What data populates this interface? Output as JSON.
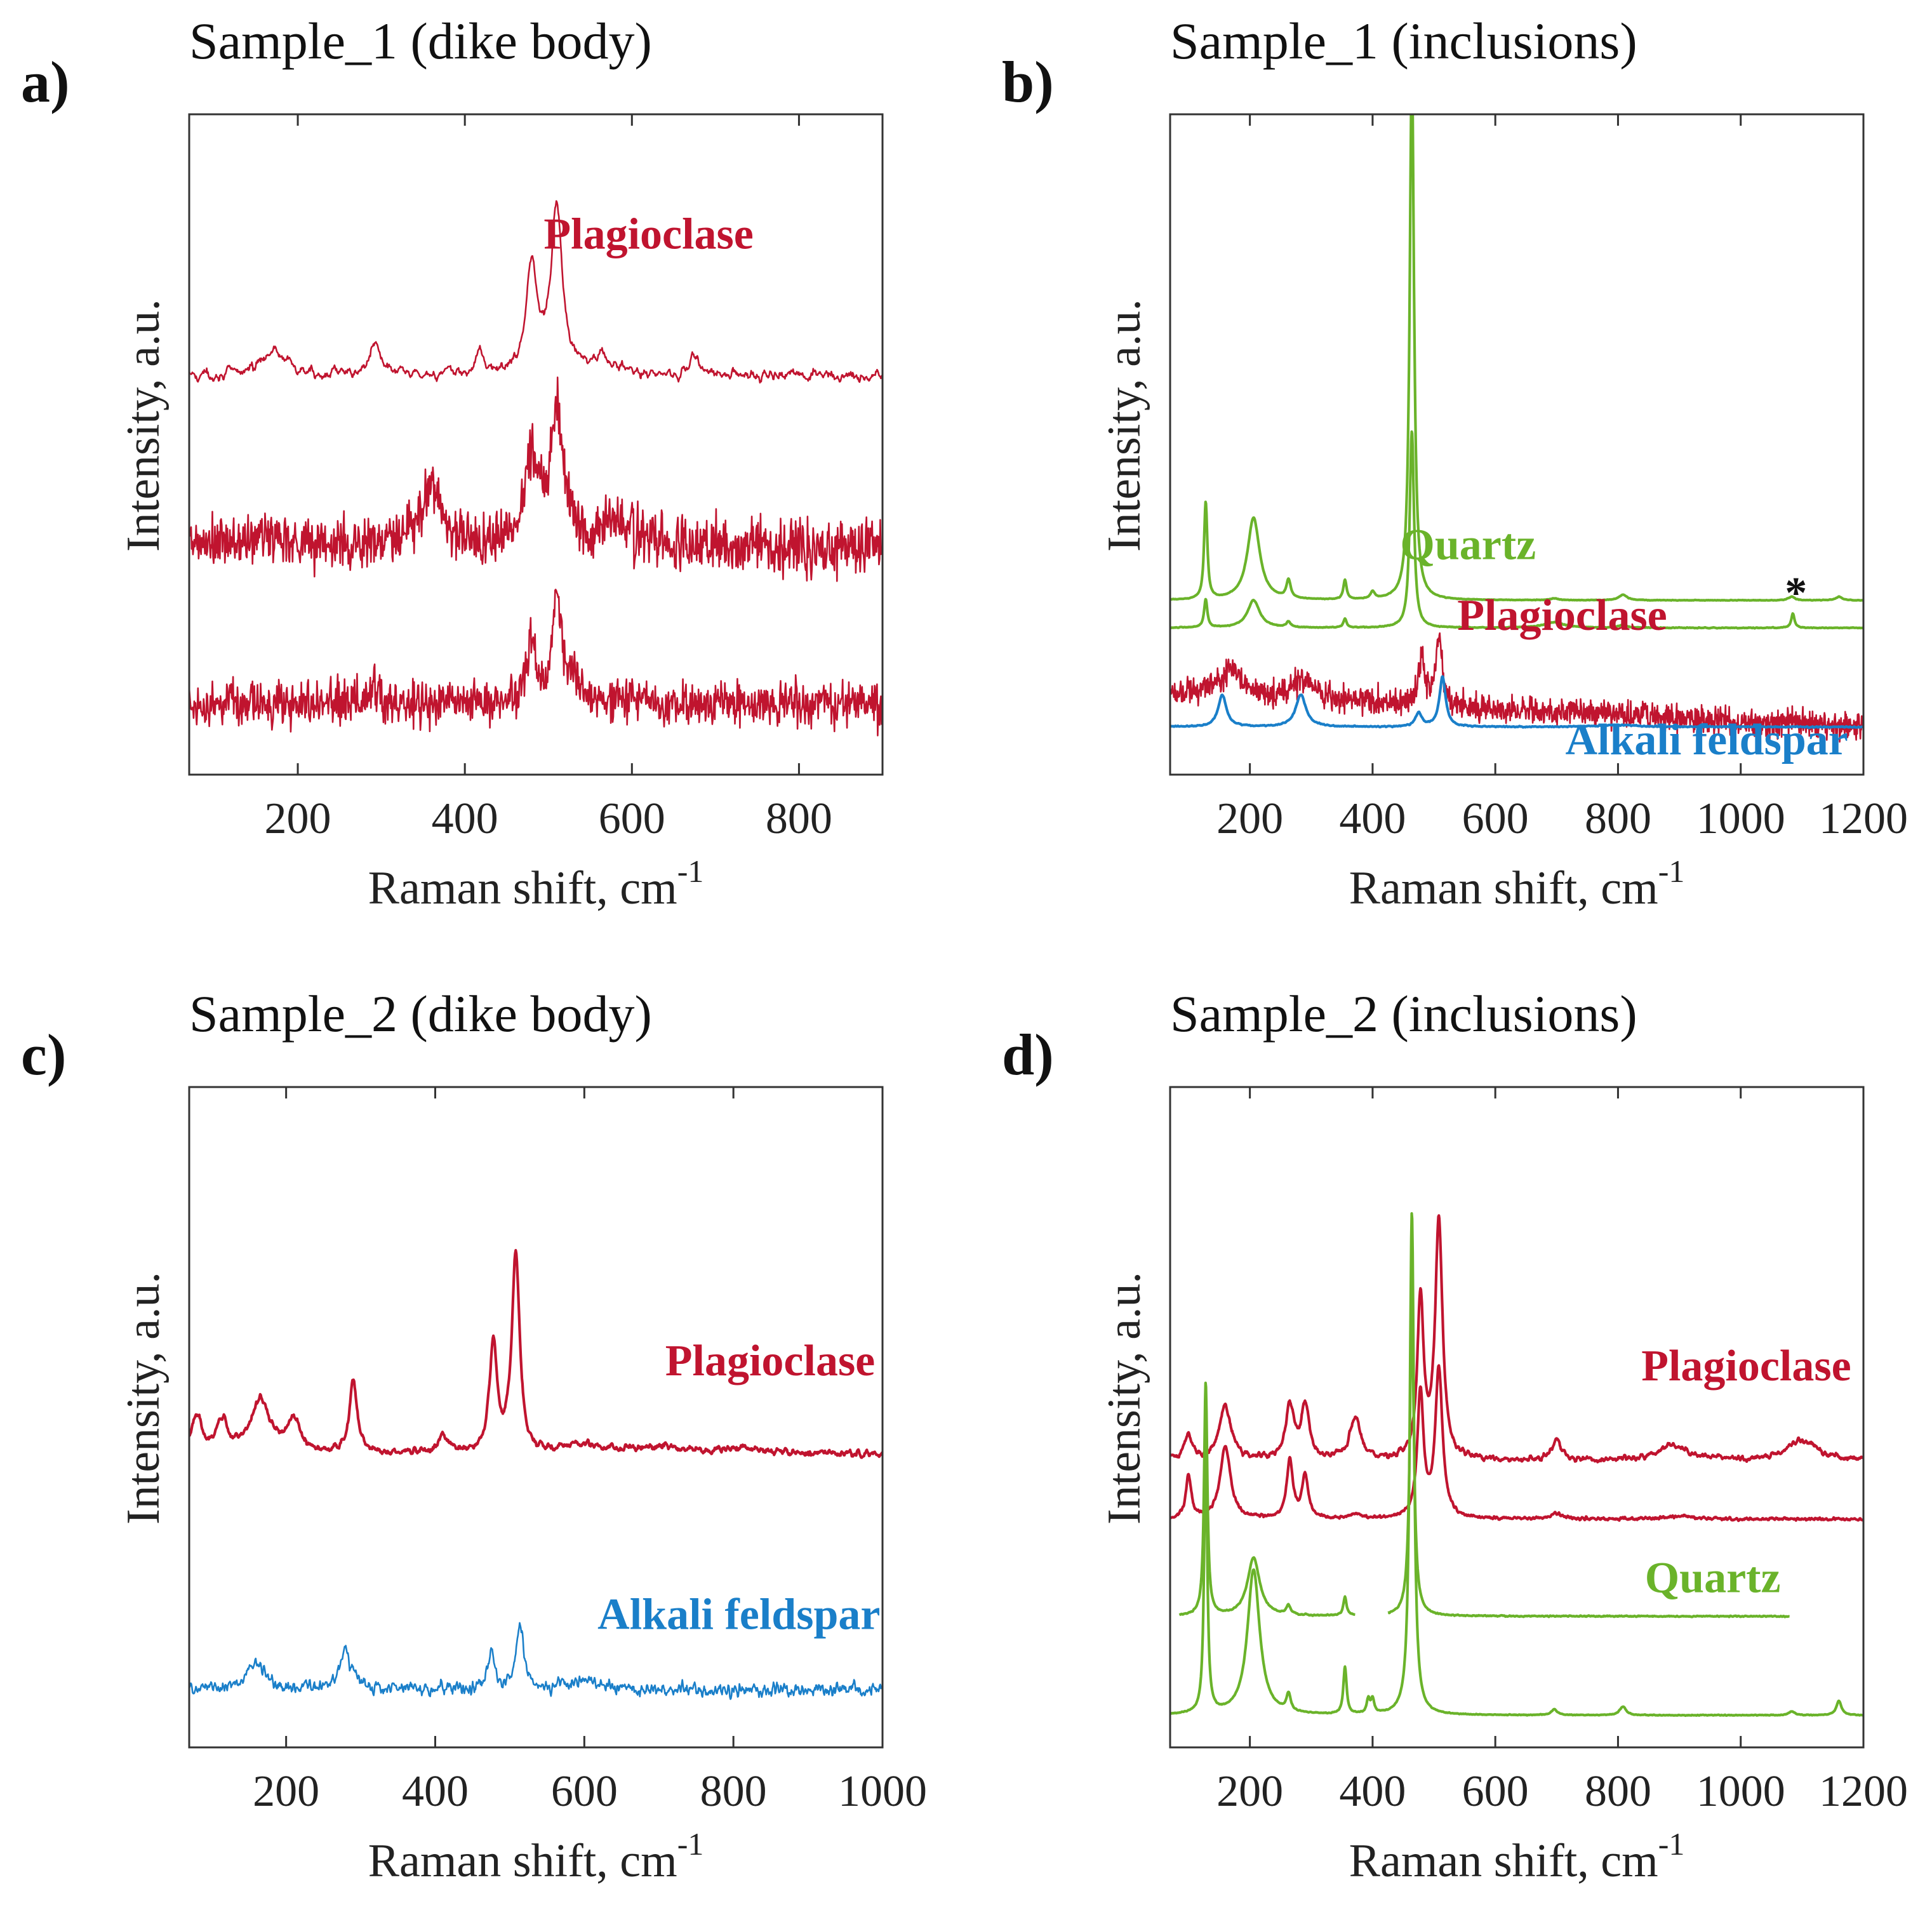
{
  "figure": {
    "domain": "Raman spectra",
    "n_panels": 4
  },
  "colors": {
    "plagioclase": "#c0142f",
    "quartz": "#6ab32a",
    "alkali_feldspar": "#1a7fc9",
    "axis": "#333333",
    "text": "#111111"
  },
  "chart_data": [
    {
      "id": "a",
      "type": "line",
      "panel_label": "a)",
      "title": "Sample_1 (dike body)",
      "xlabel": "Raman shift, cm",
      "xlabel_sup": "-1",
      "ylabel": "Intensity, a.u.",
      "xlim": [
        70,
        900
      ],
      "xticks": [
        200,
        400,
        600,
        800
      ],
      "annotations": [
        {
          "text": "Plagioclase",
          "mineral": "plagioclase",
          "x": 620,
          "anchor": "middle",
          "y": 4.62
        }
      ],
      "series": [
        {
          "name": "Plagioclase (1)",
          "mineral": "plagioclase",
          "offset": 3.5,
          "noise": 0.07,
          "smooth": 2,
          "peaks": [
            [
              170,
              0.22,
              18
            ],
            [
              293,
              0.3,
              8
            ],
            [
              418,
              0.22,
              5
            ],
            [
              480,
              0.95,
              8
            ],
            [
              510,
              1.45,
              8
            ],
            [
              560,
              0.15,
              20
            ],
            [
              675,
              0.2,
              6
            ]
          ]
        },
        {
          "name": "Plagioclase (2)",
          "mineral": "plagioclase",
          "offset": 2.0,
          "noise": 0.15,
          "smooth": 0,
          "peaks": [
            [
              170,
              0.1,
              30
            ],
            [
              360,
              0.55,
              14
            ],
            [
              480,
              0.75,
              10
            ],
            [
              510,
              1.15,
              10
            ],
            [
              580,
              0.2,
              25
            ]
          ]
        },
        {
          "name": "Plagioclase (3)",
          "mineral": "plagioclase",
          "offset": 0.62,
          "noise": 0.12,
          "smooth": 0,
          "peaks": [
            [
              293,
              0.12,
              8
            ],
            [
              480,
              0.5,
              7
            ],
            [
              510,
              0.85,
              7
            ],
            [
              530,
              0.2,
              10
            ]
          ]
        }
      ],
      "ylim": [
        0,
        5.8
      ]
    },
    {
      "id": "b",
      "type": "line",
      "panel_label": "b)",
      "title": "Sample_1 (inclusions)",
      "xlabel": "Raman shift, cm",
      "xlabel_sup": "-1",
      "ylabel": "Intensity, a.u.",
      "xlim": [
        70,
        1200
      ],
      "xticks": [
        200,
        400,
        600,
        800,
        1000,
        1200
      ],
      "annotations": [
        {
          "text": "Quartz",
          "mineral": "quartz",
          "x": 445,
          "anchor": "start",
          "y": 2.35
        },
        {
          "text": "Plagioclase",
          "mineral": "plagioclase",
          "x": 880,
          "anchor": "end",
          "y": 1.58
        },
        {
          "text": "Alkali feldspar",
          "mineral": "alkali_feldspar",
          "x": 1175,
          "anchor": "end",
          "y": 0.22
        },
        {
          "text": "*",
          "mineral": "text",
          "x": 1090,
          "anchor": "middle",
          "y": 1.82
        }
      ],
      "series": [
        {
          "name": "Quartz (1)",
          "mineral": "quartz",
          "offset": 1.9,
          "noise": 0.003,
          "smooth": 1,
          "peaks": [
            [
              128,
              1.1,
              3
            ],
            [
              206,
              0.9,
              12
            ],
            [
              263,
              0.2,
              4
            ],
            [
              355,
              0.22,
              3
            ],
            [
              400,
              0.08,
              4
            ],
            [
              464,
              6.0,
              4
            ],
            [
              696,
              0.02,
              8
            ],
            [
              808,
              0.06,
              8
            ],
            [
              1083,
              0.04,
              6
            ],
            [
              1160,
              0.04,
              6
            ]
          ]
        },
        {
          "name": "Quartz (2)",
          "mineral": "quartz",
          "offset": 1.6,
          "noise": 0.004,
          "smooth": 1,
          "peaks": [
            [
              128,
              0.32,
              3
            ],
            [
              206,
              0.3,
              12
            ],
            [
              263,
              0.06,
              4
            ],
            [
              355,
              0.1,
              3
            ],
            [
              464,
              2.2,
              4
            ],
            [
              696,
              0.06,
              20
            ],
            [
              808,
              0.03,
              8
            ],
            [
              1085,
              0.16,
              3
            ]
          ]
        },
        {
          "name": "Plagioclase",
          "mineral": "plagioclase",
          "offset": 0.9,
          "slope": -0.38,
          "noise": 0.09,
          "smooth": 0,
          "peaks": [
            [
              170,
              0.25,
              25
            ],
            [
              285,
              0.2,
              15
            ],
            [
              480,
              0.5,
              6
            ],
            [
              508,
              0.75,
              6
            ]
          ]
        },
        {
          "name": "Alkali feldspar",
          "mineral": "alkali_feldspar",
          "offset": 0.52,
          "noise": 0.006,
          "smooth": 1,
          "peaks": [
            [
              155,
              0.35,
              8
            ],
            [
              283,
              0.35,
              10
            ],
            [
              475,
              0.15,
              6
            ],
            [
              514,
              0.55,
              6
            ],
            [
              800,
              0.02,
              40
            ]
          ]
        }
      ],
      "ylim": [
        0,
        7.2
      ]
    },
    {
      "id": "c",
      "type": "line",
      "panel_label": "c)",
      "title": "Sample_2 (dike body)",
      "xlabel": "Raman shift, cm",
      "xlabel_sup": "-1",
      "ylabel": "Intensity, a.u.",
      "xlim": [
        70,
        1000
      ],
      "xticks": [
        200,
        400,
        600,
        800,
        1000
      ],
      "annotations": [
        {
          "text": "Plagioclase",
          "mineral": "plagioclase",
          "x": 990,
          "anchor": "end",
          "y": 3.55
        },
        {
          "text": "Alkali feldspar",
          "mineral": "alkali_feldspar",
          "x": 997,
          "anchor": "end",
          "y": 1.13
        }
      ],
      "series": [
        {
          "name": "Plagioclase",
          "mineral": "plagioclase",
          "offset": 2.8,
          "noise": 0.05,
          "smooth": 2,
          "peaks": [
            [
              80,
              0.35,
              8
            ],
            [
              115,
              0.3,
              8
            ],
            [
              165,
              0.5,
              16
            ],
            [
              210,
              0.3,
              10
            ],
            [
              290,
              0.7,
              6
            ],
            [
              410,
              0.15,
              8
            ],
            [
              478,
              1.05,
              6
            ],
            [
              508,
              1.95,
              6
            ],
            [
              600,
              0.08,
              30
            ],
            [
              700,
              0.06,
              40
            ],
            [
              810,
              0.05,
              30
            ]
          ]
        },
        {
          "name": "Alkali feldspar",
          "mineral": "alkali_feldspar",
          "offset": 0.55,
          "noise": 0.065,
          "smooth": 1,
          "peaks": [
            [
              160,
              0.25,
              16
            ],
            [
              280,
              0.35,
              10
            ],
            [
              475,
              0.35,
              6
            ],
            [
              514,
              0.65,
              6
            ],
            [
              600,
              0.08,
              20
            ]
          ]
        }
      ],
      "ylim": [
        0,
        6.3
      ]
    },
    {
      "id": "d",
      "type": "line",
      "panel_label": "d)",
      "title": "Sample_2 (inclusions)",
      "xlabel": "Raman shift, cm",
      "xlabel_sup": "-1",
      "ylabel": "Intensity, a.u.",
      "xlim": [
        70,
        1200
      ],
      "xticks": [
        200,
        400,
        600,
        800,
        1000,
        1200
      ],
      "annotations": [
        {
          "text": "Plagioclase",
          "mineral": "plagioclase",
          "x": 1180,
          "anchor": "end",
          "y": 3.78
        },
        {
          "text": "Quartz",
          "mineral": "quartz",
          "x": 1065,
          "anchor": "end",
          "y": 1.6
        }
      ],
      "series": [
        {
          "name": "Plagioclase (1)",
          "mineral": "plagioclase",
          "offset": 2.95,
          "noise": 0.04,
          "smooth": 2,
          "peaks": [
            [
              100,
              0.25,
              8
            ],
            [
              160,
              0.55,
              12
            ],
            [
              265,
              0.55,
              8
            ],
            [
              290,
              0.55,
              8
            ],
            [
              372,
              0.45,
              10
            ],
            [
              478,
              1.7,
              6
            ],
            [
              508,
              2.5,
              7
            ],
            [
              700,
              0.2,
              10
            ],
            [
              890,
              0.15,
              30
            ],
            [
              1100,
              0.22,
              30
            ]
          ]
        },
        {
          "name": "Plagioclase (2)",
          "mineral": "plagioclase",
          "offset": 2.35,
          "noise": 0.015,
          "smooth": 1,
          "peaks": [
            [
              100,
              0.45,
              5
            ],
            [
              160,
              0.75,
              10
            ],
            [
              265,
              0.6,
              6
            ],
            [
              290,
              0.45,
              6
            ],
            [
              372,
              0.05,
              10
            ],
            [
              478,
              1.3,
              6
            ],
            [
              508,
              1.55,
              7
            ],
            [
              700,
              0.06,
              10
            ],
            [
              900,
              0.03,
              30
            ]
          ]
        },
        {
          "name": "Quartz (1)",
          "mineral": "quartz",
          "offset": 1.35,
          "noise": 0.006,
          "smooth": 1,
          "xrange": [
            85,
            1080
          ],
          "gap": [
            372,
            425
          ],
          "peaks": [
            [
              128,
              2.5,
              3
            ],
            [
              206,
              0.6,
              12
            ],
            [
              263,
              0.1,
              4
            ],
            [
              355,
              0.2,
              3
            ],
            [
              464,
              3.2,
              4
            ]
          ]
        },
        {
          "name": "Quartz (2)",
          "mineral": "quartz",
          "offset": 0.33,
          "noise": 0.004,
          "smooth": 1,
          "peaks": [
            [
              128,
              2.8,
              3
            ],
            [
              206,
              1.5,
              12
            ],
            [
              263,
              0.18,
              4
            ],
            [
              355,
              0.5,
              3
            ],
            [
              393,
              0.15,
              3
            ],
            [
              400,
              0.15,
              3
            ],
            [
              464,
              5.3,
              4
            ],
            [
              696,
              0.06,
              6
            ],
            [
              808,
              0.09,
              6
            ],
            [
              1083,
              0.04,
              6
            ],
            [
              1160,
              0.15,
              5
            ]
          ]
        }
      ],
      "ylim": [
        0,
        6.8
      ]
    }
  ]
}
